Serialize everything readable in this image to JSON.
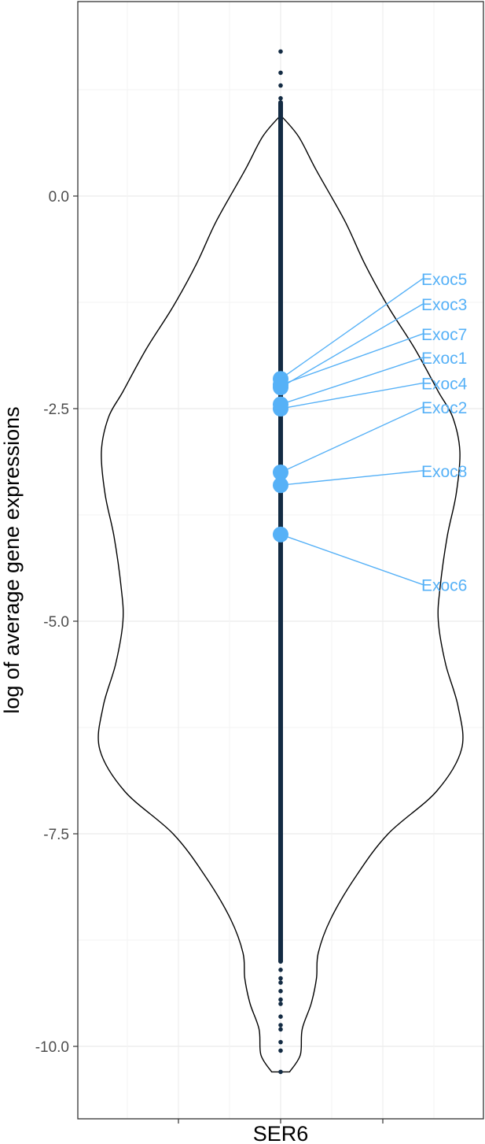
{
  "chart_data": {
    "type": "violin",
    "category": "SER6",
    "ylabel": "log of average gene expressions",
    "xlabel": "",
    "ylim": [
      -10.75,
      2.3
    ],
    "y_ticks": [
      0.0,
      -2.5,
      -5.0,
      -7.5,
      -10.0
    ],
    "y_tick_labels": [
      "0.0",
      "-2.5",
      "-5.0",
      "-7.5",
      "-10.0"
    ],
    "grid": true,
    "violin_profile": [
      {
        "y": 0.95,
        "w": 0.0
      },
      {
        "y": 0.7,
        "w": 0.1
      },
      {
        "y": 0.3,
        "w": 0.2
      },
      {
        "y": -0.3,
        "w": 0.36
      },
      {
        "y": -0.8,
        "w": 0.47
      },
      {
        "y": -1.3,
        "w": 0.6
      },
      {
        "y": -1.8,
        "w": 0.75
      },
      {
        "y": -2.3,
        "w": 0.88
      },
      {
        "y": -2.6,
        "w": 0.96
      },
      {
        "y": -3.0,
        "w": 1.0
      },
      {
        "y": -3.5,
        "w": 0.98
      },
      {
        "y": -4.0,
        "w": 0.93
      },
      {
        "y": -4.6,
        "w": 0.89
      },
      {
        "y": -5.0,
        "w": 0.88
      },
      {
        "y": -5.5,
        "w": 0.92
      },
      {
        "y": -6.0,
        "w": 0.99
      },
      {
        "y": -6.5,
        "w": 1.01
      },
      {
        "y": -7.0,
        "w": 0.87
      },
      {
        "y": -7.5,
        "w": 0.6
      },
      {
        "y": -8.0,
        "w": 0.42
      },
      {
        "y": -8.5,
        "w": 0.28
      },
      {
        "y": -8.9,
        "w": 0.21
      },
      {
        "y": -9.2,
        "w": 0.2
      },
      {
        "y": -9.5,
        "w": 0.17
      },
      {
        "y": -9.8,
        "w": 0.12
      },
      {
        "y": -10.1,
        "w": 0.11
      },
      {
        "y": -10.3,
        "w": 0.05
      }
    ],
    "point_line": {
      "y_from": -9.0,
      "y_to": 1.1
    },
    "outlier_points": [
      1.7,
      1.45,
      1.3,
      1.15,
      1.0,
      -9.0,
      -9.1,
      -9.2,
      -9.25,
      -9.35,
      -9.45,
      -9.5,
      -9.65,
      -9.75,
      -9.8,
      -9.95,
      -10.05,
      -10.3
    ],
    "highlighted_genes": [
      {
        "name": "Exoc5",
        "y": -2.15
      },
      {
        "name": "Exoc3",
        "y": -2.25
      },
      {
        "name": "Exoc7",
        "y": -2.22
      },
      {
        "name": "Exoc1",
        "y": -2.45
      },
      {
        "name": "Exoc4",
        "y": -2.5
      },
      {
        "name": "Exoc2",
        "y": -3.25
      },
      {
        "name": "Exoc8",
        "y": -3.4
      },
      {
        "name": "Exoc6",
        "y": -3.98
      }
    ],
    "label_positions_y": [
      -0.97,
      -1.27,
      -1.62,
      -1.9,
      -2.2,
      -2.48,
      -3.23,
      -4.57
    ],
    "colors": {
      "points": "#132b43",
      "highlight": "#56b1f7",
      "violin": "#000000",
      "grid_major": "#ebebeb",
      "grid_minor": "#f3f3f3",
      "border": "#333333"
    }
  }
}
